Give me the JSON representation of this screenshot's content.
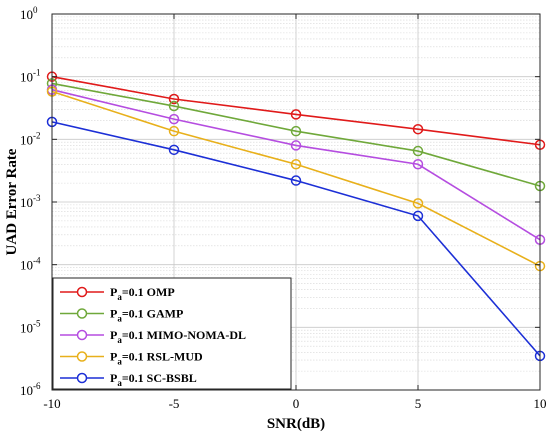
{
  "chart_data": {
    "type": "line",
    "title": "",
    "xlabel": "SNR(dB)",
    "ylabel": "UAD Error Rate",
    "x": [
      -10,
      -5,
      0,
      5,
      10
    ],
    "xlim": [
      -10,
      10
    ],
    "ylim": [
      1e-06,
      1
    ],
    "yscale": "log",
    "grid": true,
    "legend_position": "bottom-left",
    "x_ticks": [
      "-10",
      "-5",
      "0",
      "5",
      "10"
    ],
    "y_ticks": [
      {
        "base": "10",
        "exp": "-6"
      },
      {
        "base": "10",
        "exp": "-5"
      },
      {
        "base": "10",
        "exp": "-4"
      },
      {
        "base": "10",
        "exp": "-3"
      },
      {
        "base": "10",
        "exp": "-2"
      },
      {
        "base": "10",
        "exp": "-1"
      },
      {
        "base": "10",
        "exp": "0"
      }
    ],
    "series": [
      {
        "name": "OMP",
        "legend_prefix": "P",
        "legend_sub": "a",
        "legend_suffix": "=0.1 OMP",
        "color": "#e01a1a",
        "values": [
          0.1,
          0.044,
          0.025,
          0.0145,
          0.0082
        ]
      },
      {
        "name": "GAMP",
        "legend_prefix": "P",
        "legend_sub": "a",
        "legend_suffix": "=0.1 GAMP",
        "color": "#6fa83a",
        "values": [
          0.078,
          0.034,
          0.0135,
          0.0065,
          0.0018
        ]
      },
      {
        "name": "MIMO-NOMA-DL",
        "legend_prefix": "P",
        "legend_sub": "a",
        "legend_suffix": "=0.1 MIMO-NOMA-DL",
        "color": "#b54de0",
        "values": [
          0.062,
          0.021,
          0.008,
          0.004,
          0.00025
        ]
      },
      {
        "name": "RSL-MUD",
        "legend_prefix": "P",
        "legend_sub": "a",
        "legend_suffix": "=0.1 RSL-MUD",
        "color": "#e8b01b",
        "values": [
          0.058,
          0.0135,
          0.004,
          0.00095,
          9.5e-05
        ]
      },
      {
        "name": "SC-BSBL",
        "legend_prefix": "P",
        "legend_sub": "a",
        "legend_suffix": "=0.1 SC-BSBL",
        "color": "#1c2fd6",
        "values": [
          0.019,
          0.0068,
          0.0022,
          0.0006,
          3.5e-06
        ]
      }
    ]
  }
}
